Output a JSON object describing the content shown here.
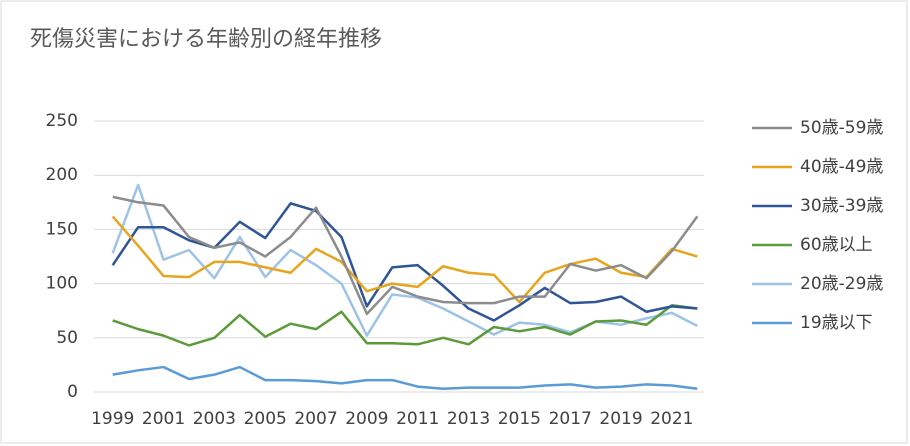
{
  "chart_data": {
    "type": "line",
    "title": "死傷災害における年齢別の経年推移",
    "categories": [
      "1999",
      null,
      "2001",
      null,
      "2003",
      null,
      "2005",
      null,
      "2007",
      null,
      "2009",
      null,
      "2011",
      null,
      "2013",
      null,
      "2015",
      null,
      "2017",
      null,
      "2019",
      null,
      "2021",
      null
    ],
    "ylim": [
      0,
      250
    ],
    "yticks": [
      0,
      50,
      100,
      150,
      200,
      250
    ],
    "grid": true,
    "series": [
      {
        "name": "50歳-59歳",
        "color": "#8c8c8c",
        "values": [
          180,
          175,
          172,
          143,
          133,
          138,
          125,
          143,
          170,
          125,
          72,
          97,
          88,
          83,
          82,
          82,
          88,
          88,
          118,
          112,
          117,
          105,
          130,
          162
        ]
      },
      {
        "name": "40歳-49歳",
        "color": "#e6a51c",
        "values": [
          162,
          135,
          107,
          106,
          120,
          120,
          115,
          110,
          132,
          120,
          93,
          100,
          97,
          116,
          110,
          108,
          83,
          110,
          118,
          123,
          110,
          106,
          132,
          125
        ]
      },
      {
        "name": "30歳-39歳",
        "color": "#2f5597",
        "values": [
          117,
          152,
          152,
          140,
          133,
          157,
          142,
          174,
          167,
          143,
          79,
          115,
          117,
          98,
          77,
          66,
          80,
          96,
          82,
          83,
          88,
          74,
          79,
          77
        ]
      },
      {
        "name": "60歳以上",
        "color": "#5b9b3a",
        "values": [
          66,
          58,
          52,
          43,
          50,
          71,
          51,
          63,
          58,
          74,
          45,
          45,
          44,
          50,
          44,
          60,
          56,
          60,
          53,
          65,
          66,
          62,
          80,
          77
        ]
      },
      {
        "name": "20歳-29歳",
        "color": "#9dc3e6",
        "values": [
          128,
          191,
          122,
          131,
          105,
          143,
          106,
          131,
          117,
          100,
          52,
          90,
          87,
          77,
          65,
          53,
          64,
          62,
          55,
          65,
          62,
          68,
          73,
          61
        ]
      },
      {
        "name": "19歳以下",
        "color": "#5b9bd5",
        "values": [
          16,
          20,
          23,
          12,
          16,
          23,
          11,
          11,
          10,
          8,
          11,
          11,
          5,
          3,
          4,
          4,
          4,
          6,
          7,
          4,
          5,
          7,
          6,
          3
        ]
      }
    ]
  }
}
